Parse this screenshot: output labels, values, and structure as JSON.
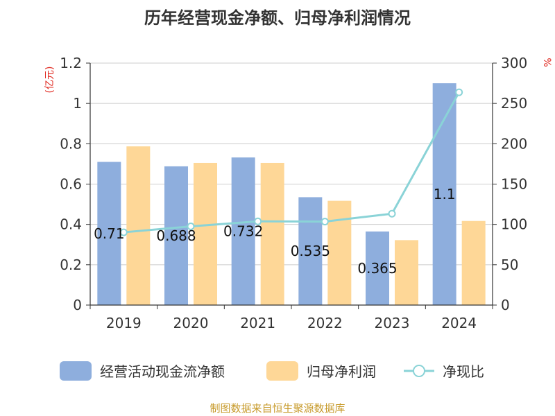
{
  "page": {
    "title": "历年经营现金净额、归母净利润情况",
    "source": "制图数据来自恒生聚源数据库"
  },
  "chart_data": {
    "type": "bar",
    "title": "历年经营现金净额、归母净利润情况",
    "categories": [
      "2019",
      "2020",
      "2021",
      "2022",
      "2023",
      "2024"
    ],
    "y_left": {
      "label": "(亿元)",
      "range": [
        0,
        1.2
      ],
      "ticks": [
        "0",
        "0.2",
        "0.4",
        "0.6",
        "0.8",
        "1",
        "1.2"
      ]
    },
    "y_right": {
      "label": "%",
      "range": [
        0,
        300
      ],
      "ticks": [
        "0",
        "50",
        "100",
        "150",
        "200",
        "250",
        "300"
      ]
    },
    "grid": true,
    "legend_position": "bottom",
    "series": [
      {
        "name": "经营活动现金流净额",
        "type": "bar",
        "axis": "left",
        "color": "#8eaedd",
        "values": [
          0.71,
          0.688,
          0.732,
          0.535,
          0.365,
          1.1
        ],
        "labels": [
          "0.71",
          "0.688",
          "0.732",
          "0.535",
          "0.365",
          "1.1"
        ]
      },
      {
        "name": "归母净利润",
        "type": "bar",
        "axis": "left",
        "color": "#fed797",
        "values": [
          0.787,
          0.705,
          0.705,
          0.517,
          0.322,
          0.417
        ]
      },
      {
        "name": "净现比",
        "type": "line",
        "axis": "right",
        "color": "#8ad3d7",
        "values": [
          90.2,
          97.6,
          103.8,
          103.5,
          113.3,
          263.8
        ]
      }
    ]
  }
}
